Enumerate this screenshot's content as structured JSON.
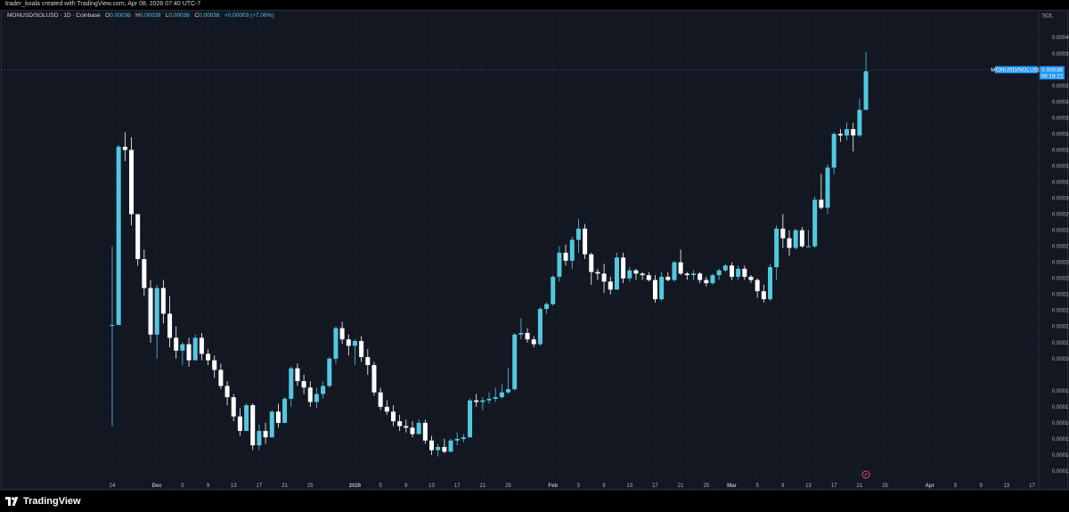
{
  "header": {
    "attribution": "trader_koala created with TradingView.com, Apr 08, 2026 07:40 UTC-7"
  },
  "legend": {
    "symbol": "MONUSD/SOLUSD · 1D · Coinbase",
    "o_label": "O",
    "o": "0.00036",
    "h_label": "H",
    "h": "0.00039",
    "l_label": "L",
    "l": "0.00036",
    "c_label": "C",
    "c": "0.00038",
    "change": "+0.00003 (+7.06%)"
  },
  "price_axis": {
    "unit": "SOL"
  },
  "current_price": {
    "symbol": "MONUSD/SOLUSD",
    "price": "0.00038",
    "countdown": "09:19:21"
  },
  "brand": {
    "name": "TradingView"
  },
  "colors": {
    "background": "#131722",
    "up": "#53c8e0",
    "down": "#ffffff",
    "grid": "#1c2030",
    "label_bg": "#2196f3"
  },
  "chart_data": {
    "type": "candlestick",
    "ylim": [
      0.000125,
      0.000409
    ],
    "y_ticks": [
      "0.00040",
      "0.00039",
      "0.00037",
      "0.00036",
      "0.00035",
      "0.00034",
      "0.00033",
      "0.00032",
      "0.00031",
      "0.00030",
      "0.00029",
      "0.00028",
      "0.00027",
      "0.00026",
      "0.00025",
      "0.00024",
      "0.00023",
      "0.00022",
      "0.00021",
      "0.00020",
      "0.00018",
      "0.00017",
      "0.00016",
      "0.00015",
      "0.00014",
      "0.00013"
    ],
    "x_ticks": [
      "24",
      "Dec",
      "5",
      "9",
      "13",
      "17",
      "21",
      "25",
      "2026",
      "5",
      "9",
      "13",
      "17",
      "21",
      "25",
      "Feb",
      "5",
      "9",
      "13",
      "17",
      "21",
      "25",
      "Mar",
      "5",
      "9",
      "13",
      "17",
      "21",
      "25",
      "Apr",
      "5",
      "9",
      "13",
      "17"
    ],
    "first_date": "2025-11-24",
    "ohlc": [
      [
        0.000221,
        0.00027,
        0.000158,
        0.000221
      ],
      [
        0.000221,
        0.000333,
        0.000221,
        0.000332
      ],
      [
        0.000332,
        0.000341,
        0.000323,
        0.00033
      ],
      [
        0.00033,
        0.000338,
        0.000283,
        0.00029
      ],
      [
        0.00029,
        0.00029,
        0.000258,
        0.000262
      ],
      [
        0.000262,
        0.000268,
        0.000239,
        0.000244
      ],
      [
        0.000244,
        0.000249,
        0.00021,
        0.000215
      ],
      [
        0.000215,
        0.000246,
        0.0002,
        0.000244
      ],
      [
        0.000244,
        0.000249,
        0.000222,
        0.000228
      ],
      [
        0.000228,
        0.000239,
        0.000207,
        0.000213
      ],
      [
        0.000213,
        0.00022,
        0.0002,
        0.000205
      ],
      [
        0.000205,
        0.00021,
        0.000196,
        0.000209
      ],
      [
        0.000209,
        0.000213,
        0.000195,
        0.000199
      ],
      [
        0.000199,
        0.000215,
        0.000199,
        0.000213
      ],
      [
        0.000213,
        0.000216,
        0.000199,
        0.000203
      ],
      [
        0.000203,
        0.000206,
        0.000196,
        0.000199
      ],
      [
        0.000199,
        0.000202,
        0.000188,
        0.000193
      ],
      [
        0.000193,
        0.000197,
        0.000181,
        0.000183
      ],
      [
        0.000183,
        0.000186,
        0.000171,
        0.000176
      ],
      [
        0.000176,
        0.000178,
        0.000161,
        0.000164
      ],
      [
        0.000164,
        0.000169,
        0.000152,
        0.000155
      ],
      [
        0.000155,
        0.000172,
        0.000155,
        0.000171
      ],
      [
        0.000171,
        0.000172,
        0.000143,
        0.000146
      ],
      [
        0.000146,
        0.000159,
        0.000143,
        0.000155
      ],
      [
        0.000155,
        0.00016,
        0.000147,
        0.000151
      ],
      [
        0.000151,
        0.000168,
        0.000151,
        0.000167
      ],
      [
        0.000167,
        0.000172,
        0.000157,
        0.00016
      ],
      [
        0.00016,
        0.000176,
        0.00016,
        0.000175
      ],
      [
        0.000175,
        0.000195,
        0.00017,
        0.000194
      ],
      [
        0.000194,
        0.000197,
        0.000183,
        0.000186
      ],
      [
        0.000186,
        0.00019,
        0.000178,
        0.000182
      ],
      [
        0.000182,
        0.000186,
        0.00017,
        0.000173
      ],
      [
        0.000173,
        0.000182,
        0.000169,
        0.000178
      ],
      [
        0.000178,
        0.000186,
        0.000175,
        0.000183
      ],
      [
        0.000183,
        0.000201,
        0.000182,
        0.0002
      ],
      [
        0.0002,
        0.00022,
        0.000197,
        0.000219
      ],
      [
        0.000219,
        0.000223,
        0.000209,
        0.000212
      ],
      [
        0.000212,
        0.000215,
        0.000202,
        0.000208
      ],
      [
        0.000208,
        0.000212,
        0.000196,
        0.000211
      ],
      [
        0.000211,
        0.000214,
        0.000198,
        0.000201
      ],
      [
        0.000201,
        0.000206,
        0.00019,
        0.000196
      ],
      [
        0.000196,
        0.000198,
        0.000177,
        0.000179
      ],
      [
        0.000179,
        0.000182,
        0.000168,
        0.00017
      ],
      [
        0.00017,
        0.000174,
        0.000165,
        0.000167
      ],
      [
        0.000167,
        0.000171,
        0.000158,
        0.000161
      ],
      [
        0.000161,
        0.000165,
        0.000155,
        0.000158
      ],
      [
        0.000158,
        0.000162,
        0.000154,
        0.000157
      ],
      [
        0.000157,
        0.000161,
        0.000151,
        0.000153
      ],
      [
        0.000153,
        0.000162,
        0.000153,
        0.00016
      ],
      [
        0.00016,
        0.000162,
        0.000147,
        0.000149
      ],
      [
        0.000149,
        0.000152,
        0.00014,
        0.000143
      ],
      [
        0.000143,
        0.000147,
        0.000139,
        0.000145
      ],
      [
        0.000145,
        0.00015,
        0.000141,
        0.000142
      ],
      [
        0.000142,
        0.00015,
        0.000142,
        0.000149
      ],
      [
        0.000149,
        0.000154,
        0.000146,
        0.00015
      ],
      [
        0.00015,
        0.000153,
        0.000148,
        0.000151
      ],
      [
        0.000151,
        0.000175,
        0.000151,
        0.000174
      ],
      [
        0.000174,
        0.000178,
        0.00017,
        0.000173
      ],
      [
        0.000173,
        0.000176,
        0.000168,
        0.000174
      ],
      [
        0.000174,
        0.000179,
        0.000172,
        0.000175
      ],
      [
        0.000175,
        0.000182,
        0.000173,
        0.000176
      ],
      [
        0.000176,
        0.000184,
        0.000175,
        0.000179
      ],
      [
        0.000179,
        0.000194,
        0.000178,
        0.000181
      ],
      [
        0.000181,
        0.000216,
        0.00018,
        0.000215
      ],
      [
        0.000215,
        0.000225,
        0.000212,
        0.000216
      ],
      [
        0.000216,
        0.000219,
        0.00021,
        0.000212
      ],
      [
        0.000212,
        0.000214,
        0.000207,
        0.000209
      ],
      [
        0.000209,
        0.000232,
        0.000208,
        0.000231
      ],
      [
        0.000231,
        0.000235,
        0.000228,
        0.000234
      ],
      [
        0.000234,
        0.000252,
        0.000233,
        0.000251
      ],
      [
        0.000251,
        0.00027,
        0.000248,
        0.000266
      ],
      [
        0.000266,
        0.000271,
        0.000258,
        0.000261
      ],
      [
        0.000261,
        0.000276,
        0.000256,
        0.000274
      ],
      [
        0.000274,
        0.000287,
        0.000266,
        0.000281
      ],
      [
        0.000281,
        0.000284,
        0.000262,
        0.000265
      ],
      [
        0.000265,
        0.000266,
        0.000246,
        0.000254
      ],
      [
        0.000254,
        0.000256,
        0.000249,
        0.000253
      ],
      [
        0.000253,
        0.000259,
        0.000241,
        0.000248
      ],
      [
        0.000248,
        0.000251,
        0.00024,
        0.000243
      ],
      [
        0.000243,
        0.000266,
        0.000243,
        0.000263
      ],
      [
        0.000263,
        0.000266,
        0.000247,
        0.00025
      ],
      [
        0.00025,
        0.000257,
        0.000248,
        0.000255
      ],
      [
        0.000255,
        0.000256,
        0.000249,
        0.000253
      ],
      [
        0.000253,
        0.000254,
        0.000249,
        0.000252
      ],
      [
        0.000252,
        0.000254,
        0.000248,
        0.000249
      ],
      [
        0.000249,
        0.000252,
        0.000235,
        0.000237
      ],
      [
        0.000237,
        0.000254,
        0.000236,
        0.000251
      ],
      [
        0.000251,
        0.000254,
        0.000248,
        0.000249
      ],
      [
        0.000249,
        0.000261,
        0.000248,
        0.00026
      ],
      [
        0.00026,
        0.000268,
        0.000252,
        0.000253
      ],
      [
        0.000253,
        0.000254,
        0.000249,
        0.000252
      ],
      [
        0.000252,
        0.000255,
        0.000249,
        0.000253
      ],
      [
        0.000253,
        0.000254,
        0.000247,
        0.000249
      ],
      [
        0.000249,
        0.000251,
        0.000245,
        0.000247
      ],
      [
        0.000247,
        0.000253,
        0.000246,
        0.000252
      ],
      [
        0.000252,
        0.000256,
        0.000249,
        0.000255
      ],
      [
        0.000255,
        0.000259,
        0.000254,
        0.000258
      ],
      [
        0.000258,
        0.00026,
        0.000249,
        0.000251
      ],
      [
        0.000251,
        0.000258,
        0.000249,
        0.000256
      ],
      [
        0.000256,
        0.000258,
        0.000249,
        0.000251
      ],
      [
        0.000251,
        0.000252,
        0.000247,
        0.000249
      ],
      [
        0.000249,
        0.00025,
        0.000238,
        0.000242
      ],
      [
        0.000242,
        0.000246,
        0.000235,
        0.000237
      ],
      [
        0.000237,
        0.000259,
        0.000236,
        0.000257
      ],
      [
        0.000257,
        0.000283,
        0.000249,
        0.000281
      ],
      [
        0.000281,
        0.00029,
        0.000269,
        0.000275
      ],
      [
        0.000275,
        0.00028,
        0.000264,
        0.000269
      ],
      [
        0.000269,
        0.000281,
        0.000268,
        0.00028
      ],
      [
        0.00028,
        0.000282,
        0.000269,
        0.00027
      ],
      [
        0.00027,
        0.00028,
        0.00027,
        0.00027
      ],
      [
        0.00027,
        0.000301,
        0.000269,
        0.000299
      ],
      [
        0.000299,
        0.000315,
        0.000293,
        0.000294
      ],
      [
        0.000294,
        0.000321,
        0.00029,
        0.000319
      ],
      [
        0.000319,
        0.000341,
        0.000315,
        0.00034
      ],
      [
        0.00034,
        0.000343,
        0.000335,
        0.000339
      ],
      [
        0.000339,
        0.000347,
        0.000336,
        0.000343
      ],
      [
        0.000343,
        0.000347,
        0.000329,
        0.000339
      ],
      [
        0.000339,
        0.000362,
        0.000338,
        0.000355
      ],
      [
        0.000355,
        0.000391,
        0.000355,
        0.000379
      ]
    ]
  }
}
